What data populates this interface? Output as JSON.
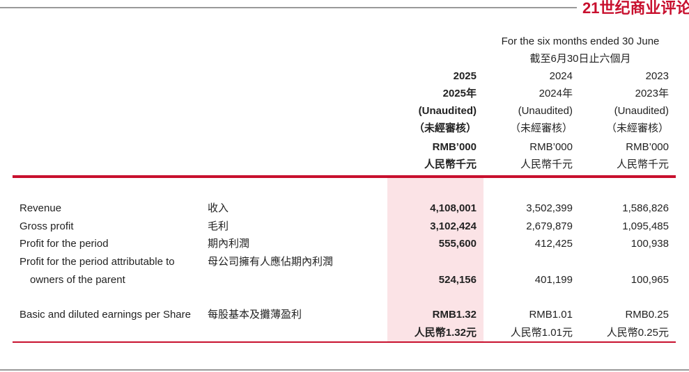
{
  "header": {
    "brand": "21世纪商业评论",
    "period_en": "For the six months ended 30 June",
    "period_zh": "截至6月30日止六個月",
    "columns": [
      {
        "year": "2025",
        "year_zh": "2025年",
        "audit": "(Unaudited)",
        "audit_zh": "（未經審核）",
        "unit": "RMB’000",
        "unit_zh": "人民幣千元"
      },
      {
        "year": "2024",
        "year_zh": "2024年",
        "audit": "(Unaudited)",
        "audit_zh": "（未經審核）",
        "unit": "RMB’000",
        "unit_zh": "人民幣千元"
      },
      {
        "year": "2023",
        "year_zh": "2023年",
        "audit": "(Unaudited)",
        "audit_zh": "（未經審核）",
        "unit": "RMB’000",
        "unit_zh": "人民幣千元"
      }
    ]
  },
  "table": {
    "rows": [
      {
        "label_en": [
          "Revenue"
        ],
        "label_zh": "收入",
        "values": [
          "4,108,001",
          "3,502,399",
          "1,586,826"
        ]
      },
      {
        "label_en": [
          "Gross profit"
        ],
        "label_zh": "毛利",
        "values": [
          "3,102,424",
          "2,679,879",
          "1,095,485"
        ]
      },
      {
        "label_en": [
          "Profit for the period"
        ],
        "label_zh": "期內利潤",
        "values": [
          "555,600",
          "412,425",
          "100,938"
        ]
      },
      {
        "label_en": [
          "Profit for the period attributable to",
          "owners of the parent"
        ],
        "label_zh": "母公司擁有人應佔期內利潤",
        "values": [
          "524,156",
          "401,199",
          "100,965"
        ]
      },
      {
        "label_en": [
          "Basic and diluted earnings per Share"
        ],
        "label_zh": "每股基本及攤薄盈利",
        "values": [
          "RMB1.32",
          "RMB1.01",
          "RMB0.25"
        ],
        "values_zh": [
          "人民幣1.32元",
          "人民幣1.01元",
          "人民幣0.25元"
        ]
      }
    ]
  }
}
